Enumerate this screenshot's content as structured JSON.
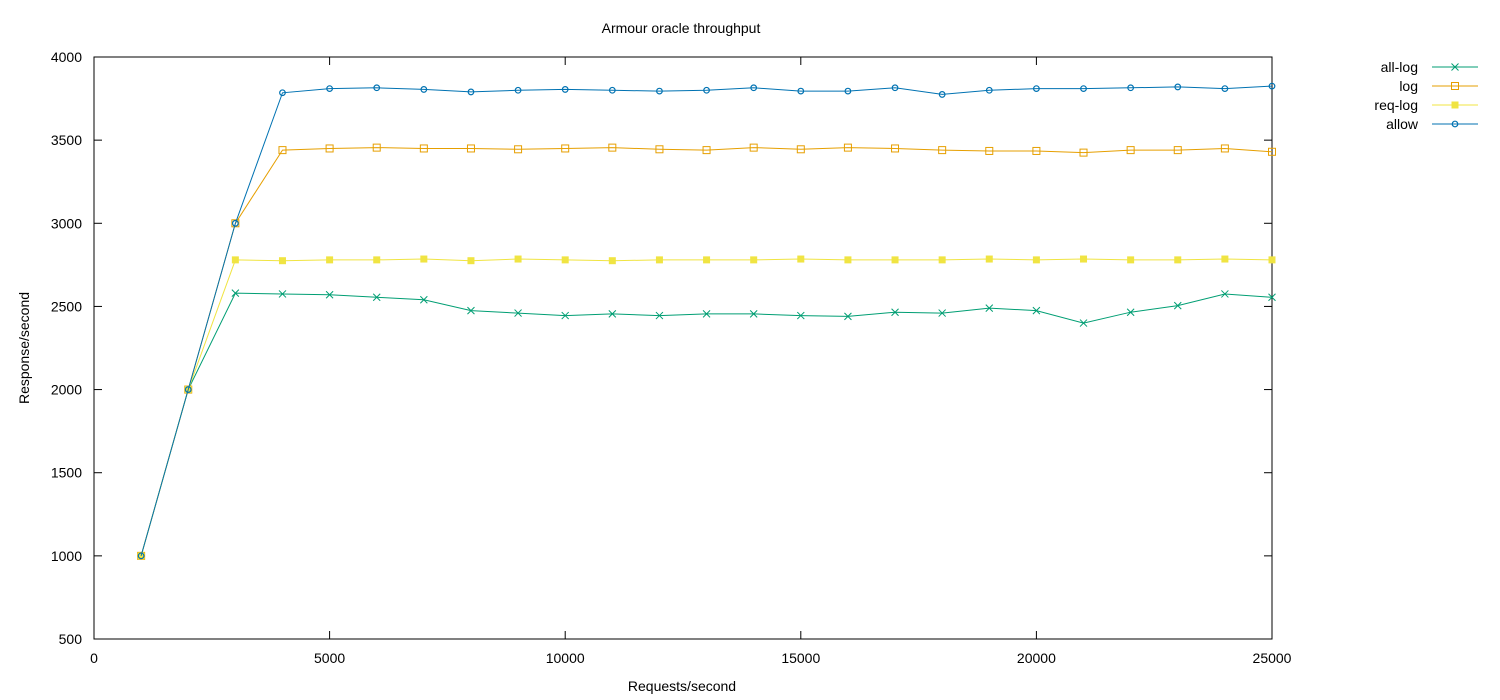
{
  "chart_data": {
    "type": "line",
    "title": "Armour oracle throughput",
    "xlabel": "Requests/second",
    "ylabel": "Response/second",
    "xlim": [
      0,
      25000
    ],
    "ylim": [
      500,
      4000
    ],
    "xticks": [
      0,
      5000,
      10000,
      15000,
      20000,
      25000
    ],
    "yticks": [
      500,
      1000,
      1500,
      2000,
      2500,
      3000,
      3500,
      4000
    ],
    "grid": false,
    "legend_position": "top-right",
    "x": [
      1000,
      2000,
      3000,
      4000,
      5000,
      6000,
      7000,
      8000,
      9000,
      10000,
      11000,
      12000,
      13000,
      14000,
      15000,
      16000,
      17000,
      18000,
      19000,
      20000,
      21000,
      22000,
      23000,
      24000,
      25000
    ],
    "series": [
      {
        "name": "all-log",
        "color": "#009e73",
        "marker": "x",
        "values": [
          1000,
          2000,
          2580,
          2575,
          2570,
          2555,
          2540,
          2475,
          2460,
          2445,
          2455,
          2445,
          2455,
          2455,
          2445,
          2440,
          2465,
          2460,
          2490,
          2475,
          2400,
          2465,
          2505,
          2575,
          2555
        ]
      },
      {
        "name": "log",
        "color": "#e69f00",
        "marker": "open-square",
        "values": [
          1000,
          2000,
          3000,
          3440,
          3450,
          3455,
          3450,
          3450,
          3445,
          3450,
          3455,
          3445,
          3440,
          3455,
          3445,
          3455,
          3450,
          3440,
          3435,
          3435,
          3425,
          3440,
          3440,
          3450,
          3430
        ]
      },
      {
        "name": "req-log",
        "color": "#f0e442",
        "marker": "filled-square",
        "values": [
          1000,
          2000,
          2780,
          2775,
          2780,
          2780,
          2785,
          2775,
          2785,
          2780,
          2775,
          2780,
          2780,
          2780,
          2785,
          2780,
          2780,
          2780,
          2785,
          2780,
          2785,
          2780,
          2780,
          2785,
          2780
        ]
      },
      {
        "name": "allow",
        "color": "#0072b2",
        "marker": "open-circle",
        "values": [
          1000,
          2000,
          3000,
          3785,
          3810,
          3815,
          3805,
          3790,
          3800,
          3805,
          3800,
          3795,
          3800,
          3815,
          3795,
          3795,
          3815,
          3775,
          3800,
          3810,
          3810,
          3815,
          3820,
          3810,
          3825
        ]
      }
    ]
  }
}
